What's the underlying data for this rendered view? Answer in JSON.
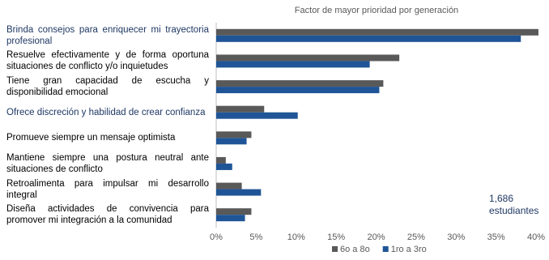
{
  "chart_data": {
    "type": "hbar",
    "title": "Factor de mayor prioridad por generación",
    "categories": [
      "Brinda consejos para enriquecer mi trayectoria profesional",
      "Resuelve efectivamente y de forma oportuna situaciones de conflicto y/o inquietudes",
      "Tiene gran capacidad de escucha y disponibilidad emocional",
      "Ofrece discreción y habilidad de crear confianza",
      "Promueve siempre un mensaje optimista",
      "Mantiene siempre una postura neutral ante situaciones de conflicto",
      "Retroalimenta para impulsar mi desarrollo integral",
      "Diseña actividades de convivencia para promover mi integración a la comunidad"
    ],
    "category_colors": [
      "#1f3864",
      "#000000",
      "#000000",
      "#1f3864",
      "#000000",
      "#000000",
      "#000000",
      "#000000"
    ],
    "series": [
      {
        "name": "6o a 8o",
        "color": "#595959",
        "values": [
          40.3,
          22.9,
          20.9,
          6.0,
          4.4,
          1.2,
          3.2,
          4.4
        ]
      },
      {
        "name": "1ro a 3ro",
        "color": "#1f5597",
        "values": [
          38.1,
          19.2,
          20.4,
          10.2,
          3.8,
          2.0,
          5.6,
          3.6
        ]
      }
    ],
    "xlim": [
      0,
      40
    ],
    "xticks": [
      {
        "value": 0,
        "label": "0%"
      },
      {
        "value": 5,
        "label": "5%"
      },
      {
        "value": 10,
        "label": "10%"
      },
      {
        "value": 15,
        "label": "15%"
      },
      {
        "value": 20,
        "label": "20%"
      },
      {
        "value": 25,
        "label": "25%"
      },
      {
        "value": 30,
        "label": "30%"
      },
      {
        "value": 35,
        "label": "35%"
      },
      {
        "value": 40,
        "label": "40%"
      }
    ],
    "annotation": "1,686 estudiantes",
    "legend": "bottom"
  }
}
